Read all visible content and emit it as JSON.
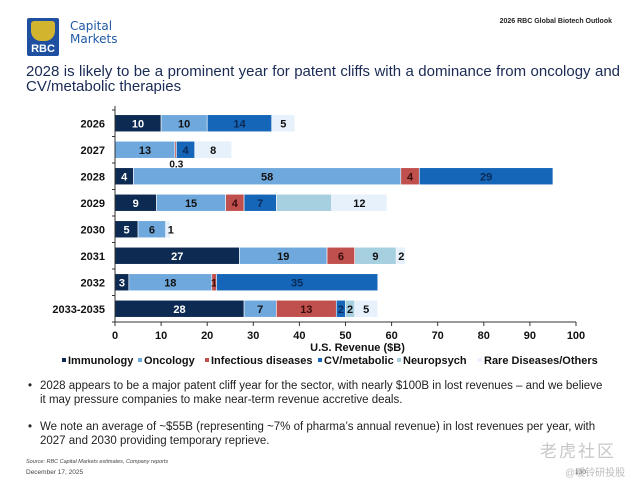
{
  "header": {
    "logo_text": "RBC",
    "brand_line1": "Capital",
    "brand_line2": "Markets",
    "report_title": "2026 RBC Global Biotech Outlook"
  },
  "slide_title": "2028 is likely to be a prominent year for patent cliffs with a dominance from oncology and CV/metabolic therapies",
  "chart_data": {
    "type": "bar",
    "orientation": "horizontal",
    "stacked": true,
    "title": "",
    "xlabel": "U.S. Revenue ($B)",
    "ylabel": "",
    "xlim": [
      0,
      100
    ],
    "xticks": [
      0,
      10,
      20,
      30,
      40,
      50,
      60,
      70,
      80,
      90,
      100
    ],
    "grid": false,
    "legend_position": "bottom",
    "categories": [
      "2026",
      "2027",
      "2028",
      "2029",
      "2030",
      "2031",
      "2032",
      "2033-2035"
    ],
    "series": [
      {
        "name": "Immunology",
        "color": "#0d2a52",
        "values": [
          10,
          0,
          4,
          9,
          5,
          27,
          3,
          28
        ],
        "labels": [
          "10",
          "",
          "4",
          "9",
          "5",
          "27",
          "3",
          "28"
        ]
      },
      {
        "name": "Oncology",
        "color": "#6fa8dc",
        "values": [
          10,
          13,
          58,
          15,
          6,
          19,
          18,
          7
        ],
        "labels": [
          "10",
          "13",
          "58",
          "15",
          "6",
          "19",
          "18",
          "7"
        ]
      },
      {
        "name": "Infectious diseases",
        "color": "#c0504d",
        "values": [
          0,
          0.3,
          4,
          4,
          0,
          6,
          1,
          13
        ],
        "labels": [
          "",
          "0.3",
          "4",
          "4",
          "",
          "6",
          "1",
          "13"
        ]
      },
      {
        "name": "CV/metabolic",
        "color": "#1565b8",
        "values": [
          14,
          4,
          29,
          7,
          0,
          0,
          35,
          2
        ],
        "labels": [
          "14",
          "4",
          "29",
          "7",
          "",
          "",
          "35",
          "2"
        ]
      },
      {
        "name": "Neuropsych",
        "color": "#a6cfe0",
        "values": [
          0,
          0,
          0,
          12,
          0,
          9,
          0,
          2
        ],
        "labels": [
          "",
          "",
          "",
          "",
          "",
          "9",
          "",
          "2"
        ]
      },
      {
        "name": "Rare Diseases/Others",
        "color": "#e6f1fb",
        "values": [
          5,
          8,
          0,
          12,
          1,
          2,
          0,
          5
        ],
        "labels": [
          "5",
          "8",
          "",
          "12",
          "1",
          "2",
          "",
          "5"
        ]
      }
    ]
  },
  "bullets": [
    "2028 appears to be a major patent cliff year for the sector, with nearly $100B in lost revenues – and we believe it may pressure companies to make near-term revenue accretive deals.",
    "We note an average of ~$55B (representing ~7% of pharma’s annual revenue) in lost revenues per year, with 2027 and 2030 providing temporary reprieve."
  ],
  "footer": {
    "source": "Source: RBC Capital Markets estimates, Company reports",
    "date": "December 17, 2025",
    "page": "130",
    "watermark1": "老虎社区",
    "watermark2": "@暖铃研投股"
  }
}
